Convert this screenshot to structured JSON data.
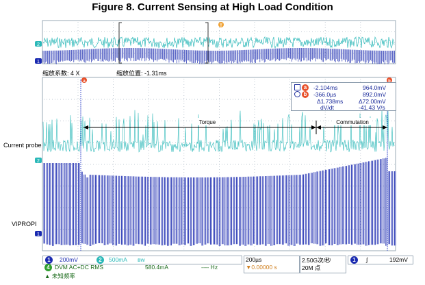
{
  "figure_title": "Figure 8. Current Sensing at High Load Condition",
  "overview": {
    "marker_label": "T",
    "channel_2_marker": "2",
    "channel_1_marker": "1"
  },
  "zoom_info": {
    "factor_label": "缩放系数: 4 X",
    "position_label": "缩放位置: -1.31ms"
  },
  "main": {
    "cursor_a_label": "a",
    "cursor_b_label": "b",
    "torque_label": "Torque",
    "commutation_label": "Commutation",
    "ch2_marker": "2",
    "ch1_marker": "1"
  },
  "side_labels": {
    "current_probe": "Current probe",
    "vipropi": "VIPROPI"
  },
  "cursor_readout": {
    "row1_time": "-2.104ms",
    "row1_value": "964.0mV",
    "row2_time": "-366.0µs",
    "row2_value": "892.0mV",
    "delta_time": "Δ1.738ms",
    "delta_value": "Δ72.00mV",
    "slope_label": "dV/dt",
    "slope_value": "-41.43 V/s",
    "a_marker": "a",
    "b_marker": "b"
  },
  "status": {
    "ch1_number": "1",
    "ch1_scale": "200mV",
    "ch2_number": "2",
    "ch2_scale": "500mA",
    "ch2_suffix": "ᴮ𝗐",
    "dvm_number": "4",
    "dvm_label": "DVM AC+DC RMS",
    "dvm_value": "580.4mA",
    "dvm_freq": "---- Hz",
    "bottom_cut": "▲ 未知频率",
    "timebase": "200µs",
    "trigger_offset": "▼0.00000 s",
    "sample_rate": "2.50G次/秒",
    "record_length": "20M 点",
    "trig_channel": "1",
    "trig_level": "192mV"
  },
  "colors": {
    "grid_bg": "#ffffff",
    "grid_line": "#b8c4cf",
    "ch1": "#1a2ab0",
    "ch2": "#2ab8b8",
    "cursor_orange": "#e8502a",
    "trigger_orange": "#f0a030"
  }
}
